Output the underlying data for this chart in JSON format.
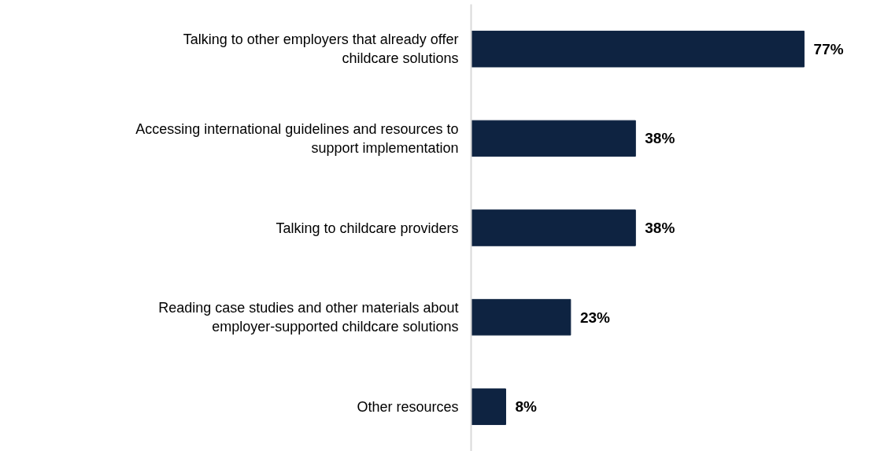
{
  "chart_data": {
    "type": "bar",
    "orientation": "horizontal",
    "categories": [
      "Talking to other employers that already offer childcare solutions",
      "Accessing international guidelines and resources to support implementation",
      "Talking to childcare providers",
      "Reading case studies and other materials about employer-supported childcare solutions",
      "Other resources"
    ],
    "values": [
      77,
      38,
      38,
      23,
      8
    ],
    "value_labels": [
      "77%",
      "38%",
      "38%",
      "23%",
      "8%"
    ],
    "color": "#0e2341"
  }
}
